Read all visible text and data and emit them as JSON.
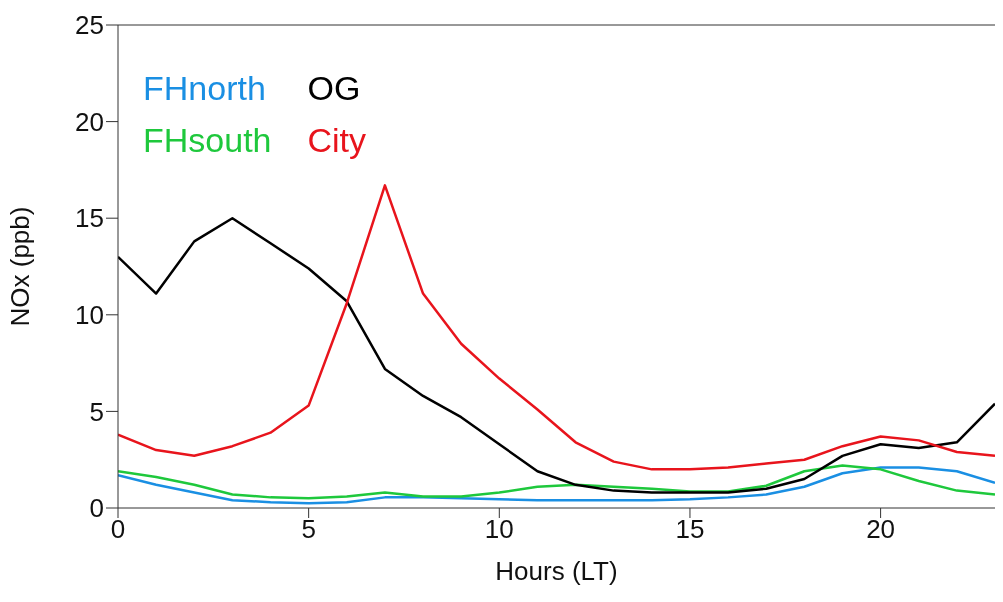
{
  "chart_data": {
    "type": "line",
    "xlabel": "Hours (LT)",
    "ylabel": "NOx (ppb)",
    "x": [
      0,
      1,
      2,
      3,
      4,
      5,
      6,
      7,
      8,
      9,
      10,
      11,
      12,
      13,
      14,
      15,
      16,
      17,
      18,
      19,
      20,
      21,
      22,
      23
    ],
    "series": [
      {
        "name": "FHnorth",
        "color": "#1a8fe3",
        "values": [
          1.7,
          1.2,
          0.8,
          0.4,
          0.3,
          0.25,
          0.3,
          0.55,
          0.55,
          0.5,
          0.45,
          0.4,
          0.4,
          0.4,
          0.4,
          0.45,
          0.55,
          0.7,
          1.1,
          1.8,
          2.1,
          2.1,
          1.9,
          1.3
        ]
      },
      {
        "name": "FHsouth",
        "color": "#1ec83c",
        "values": [
          1.9,
          1.6,
          1.2,
          0.7,
          0.55,
          0.5,
          0.6,
          0.8,
          0.6,
          0.6,
          0.8,
          1.1,
          1.2,
          1.1,
          1.0,
          0.85,
          0.85,
          1.15,
          1.9,
          2.2,
          2.0,
          1.4,
          0.9,
          0.7
        ]
      },
      {
        "name": "OG",
        "color": "#000000",
        "values": [
          13.0,
          11.1,
          13.8,
          15.0,
          13.7,
          12.4,
          10.7,
          7.2,
          5.8,
          4.7,
          3.3,
          1.9,
          1.2,
          0.9,
          0.8,
          0.8,
          0.8,
          1.0,
          1.5,
          2.7,
          3.3,
          3.1,
          3.4,
          5.4
        ]
      },
      {
        "name": "City",
        "color": "#e8141c",
        "values": [
          3.8,
          3.0,
          2.7,
          3.2,
          3.9,
          5.3,
          10.6,
          16.7,
          11.1,
          8.5,
          6.7,
          5.1,
          3.4,
          2.4,
          2.0,
          2.0,
          2.1,
          2.3,
          2.5,
          3.2,
          3.7,
          3.5,
          2.9,
          2.7
        ]
      }
    ],
    "xlim": [
      0,
      23
    ],
    "xticks": [
      0,
      5,
      10,
      15,
      20
    ],
    "ylim": [
      0,
      25
    ],
    "yticks": [
      0,
      5,
      10,
      15,
      20,
      25
    ],
    "grid": false,
    "legend": "top left",
    "marker": "none",
    "line_style": "solid"
  }
}
